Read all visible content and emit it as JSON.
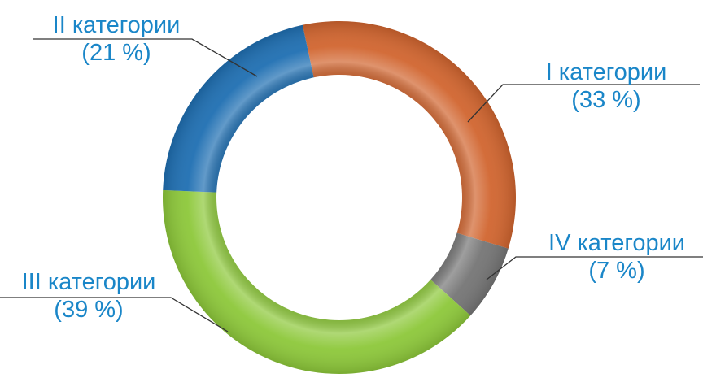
{
  "chart_data": {
    "type": "pie",
    "variant": "donut",
    "slices": [
      {
        "label": "I категории",
        "pct_label": "(33 %)",
        "value": 33,
        "color": "#d1652f"
      },
      {
        "label": "IV категории",
        "pct_label": "(7 %)",
        "value": 7,
        "color": "#757575"
      },
      {
        "label": "III категории",
        "pct_label": "(39 %)",
        "value": 39,
        "color": "#8dc83a"
      },
      {
        "label": "II категории",
        "pct_label": "(21 %)",
        "value": 21,
        "color": "#1f6fb2"
      }
    ],
    "label_color": "#1a86c8",
    "title": "",
    "legend": "none"
  }
}
